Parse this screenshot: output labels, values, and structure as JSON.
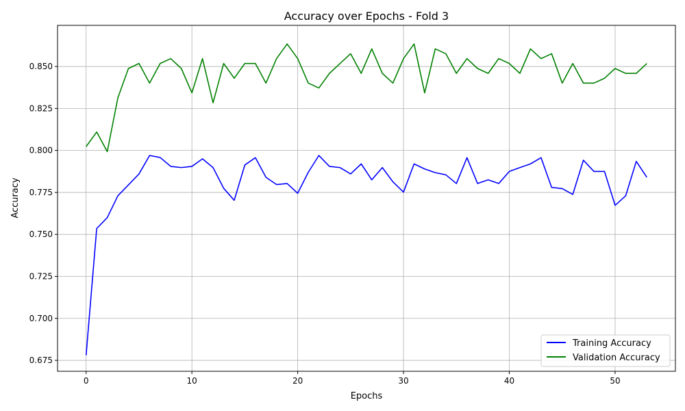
{
  "chart_data": {
    "type": "line",
    "title": "Accuracy over Epochs - Fold 3",
    "xlabel": "Epochs",
    "ylabel": "Accuracy",
    "xlim": [
      -2.7,
      55.7
    ],
    "ylim": [
      0.668,
      0.675
    ],
    "ylim_full": [
      0.6685,
      0.6745
    ],
    "x_ticks": [
      0,
      10,
      20,
      30,
      40,
      50
    ],
    "y_ticks": [
      0.675,
      0.7,
      0.725,
      0.75,
      0.775,
      0.8,
      0.825,
      0.85
    ],
    "y_tick_labels": [
      "0.675",
      "0.700",
      "0.725",
      "0.750",
      "0.775",
      "0.800",
      "0.825",
      "0.850"
    ],
    "grid": true,
    "legend_position": "lower-right",
    "series": [
      {
        "name": "Training Accuracy",
        "color": "#0000ff",
        "values": [
          0.678,
          0.7535,
          0.76,
          0.773,
          0.7795,
          0.786,
          0.797,
          0.7958,
          0.7905,
          0.7898,
          0.7905,
          0.795,
          0.7898,
          0.7775,
          0.7703,
          0.7913,
          0.7957,
          0.784,
          0.7797,
          0.7803,
          0.7745,
          0.787,
          0.797,
          0.7905,
          0.7898,
          0.786,
          0.792,
          0.7825,
          0.7898,
          0.7813,
          0.7752,
          0.792,
          0.789,
          0.7868,
          0.7855,
          0.7803,
          0.7957,
          0.7803,
          0.7825,
          0.7803,
          0.7875,
          0.7898,
          0.792,
          0.7957,
          0.778,
          0.7773,
          0.7738,
          0.7942,
          0.7875,
          0.7875,
          0.7673,
          0.773,
          0.7935,
          0.784
        ]
      },
      {
        "name": "Validation Accuracy",
        "color": "#008000",
        "values": [
          0.8023,
          0.811,
          0.7993,
          0.8313,
          0.8488,
          0.8518,
          0.8401,
          0.8518,
          0.8547,
          0.8488,
          0.8343,
          0.8547,
          0.8284,
          0.8518,
          0.843,
          0.8518,
          0.8518,
          0.8401,
          0.8547,
          0.8634,
          0.8547,
          0.8401,
          0.8372,
          0.8459,
          0.8518,
          0.8576,
          0.8459,
          0.8605,
          0.8459,
          0.8401,
          0.8547,
          0.8634,
          0.8343,
          0.8605,
          0.8576,
          0.8459,
          0.8547,
          0.8488,
          0.8459,
          0.8547,
          0.8518,
          0.8459,
          0.8605,
          0.8547,
          0.8576,
          0.8401,
          0.8518,
          0.8401,
          0.8401,
          0.843,
          0.8488,
          0.8459,
          0.8459,
          0.8518
        ]
      }
    ]
  }
}
